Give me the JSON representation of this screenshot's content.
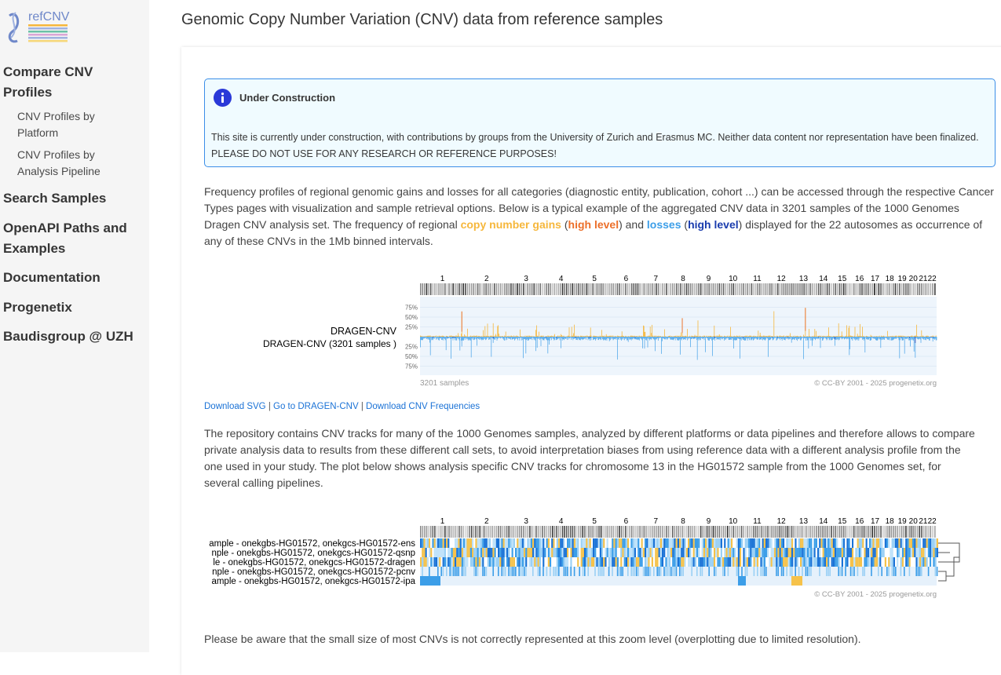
{
  "sidebar": {
    "logo_text": "refCNV",
    "items": [
      {
        "label": "Compare CNV Profiles",
        "level": 1
      },
      {
        "label": "CNV Profiles by Platform",
        "level": 2
      },
      {
        "label": "CNV Profiles by Analysis Pipeline",
        "level": 2
      },
      {
        "label": "Search Samples",
        "level": 1
      },
      {
        "label": "OpenAPI Paths and Examples",
        "level": 1
      },
      {
        "label": "Documentation",
        "level": 1
      },
      {
        "label": "Progenetix",
        "level": 1
      },
      {
        "label": "Baudisgroup @ UZH",
        "level": 1
      }
    ]
  },
  "page_title": "Genomic Copy Number Variation (CNV) data from reference samples",
  "notice": {
    "title": "Under Construction",
    "text": "This site is currently under construction, with contributions by groups from the University of Zurich and Erasmus MC. Neither data content nor representation have been finalized. PLEASE DO NOT USE FOR ANY RESEARCH OR REFERENCE PURPOSES!"
  },
  "intro": {
    "part1": "Frequency profiles of regional genomic gains and losses for all categories (diagnostic entity, publication, cohort ...) can be accessed through the respective Cancer Types pages with visualization and sample retrieval options. Below is a typical example of the aggregated CNV data in 3201 samples of the 1000 Genomes Dragen CNV analysis set. The frequency of regional ",
    "gain_label": "copy number gains",
    "open1": " (",
    "gain_high": "high level",
    "mid": ") and ",
    "loss_label": "losses",
    "open2": " (",
    "loss_high": "high level",
    "part2": ") displayed for the 22 autosomes as occurrence of any of these CNVs in the 1Mb binned intervals."
  },
  "frequency_plot": {
    "chromosomes": [
      "1",
      "2",
      "3",
      "4",
      "5",
      "6",
      "7",
      "8",
      "9",
      "10",
      "11",
      "12",
      "13",
      "14",
      "15",
      "16",
      "17",
      "18",
      "19",
      "20",
      "21",
      "22"
    ],
    "label_main": "DRAGEN-CNV",
    "label_sub": "DRAGEN-CNV (3201 samples )",
    "axis_ticks": [
      "75%",
      "50%",
      "25%",
      "25%",
      "50%",
      "75%"
    ],
    "footer_left": "3201 samples",
    "footer_right": "© CC-BY 2001 - 2025 progenetix.org",
    "colors": {
      "gain": "#f6b73c",
      "gain_high": "#ec6f2a",
      "loss": "#3c9ee8",
      "loss_high": "#1a3cae"
    }
  },
  "links": {
    "download_svg": "Download SVG",
    "sep1": " | ",
    "goto": "Go to DRAGEN-CNV",
    "sep2": " | ",
    "download_freq": "Download CNV Frequencies"
  },
  "repo_paragraph": "The repository contains CNV tracks for many of the 1000 Genomes samples, analyzed by different platforms or data pipelines and therefore allows to compare private analysis data to results from these different call sets, to avoid interpretation biases from using reference data with a different analysis profile from the one used in your study. The plot below shows analysis specific CNV tracks for chromosome 13 in the HG01572 sample from the 1000 Genomes set, for several calling pipelines.",
  "sample_plot": {
    "chromosomes": [
      "1",
      "2",
      "3",
      "4",
      "5",
      "6",
      "7",
      "8",
      "9",
      "10",
      "11",
      "12",
      "13",
      "14",
      "15",
      "16",
      "17",
      "18",
      "19",
      "20",
      "21",
      "22"
    ],
    "tracks": [
      "ample - onekgbs-HG01572, onekgcs-HG01572-ens",
      "nple - onekgbs-HG01572, onekgcs-HG01572-qsnp",
      "le - onekgbs-HG01572, onekgcs-HG01572-dragen",
      "nple - onekgbs-HG01572, onekgcs-HG01572-pcnv",
      "ample - onekgbs-HG01572, onekgcs-HG01572-ipa"
    ],
    "footer_right": "© CC-BY 2001 - 2025 progenetix.org"
  },
  "zoom_note": "Please be aware that the small size of most CNVs is not correctly represented at this zoom level (overplotting due to limited resolution)."
}
